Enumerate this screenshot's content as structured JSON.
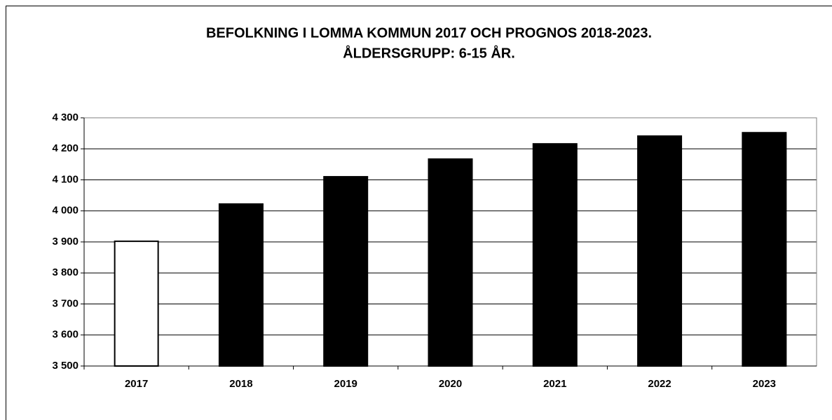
{
  "chart_data": {
    "type": "bar",
    "title": "BEFOLKNING I LOMMA KOMMUN 2017 OCH PROGNOS 2018-2023.",
    "subtitle": "ÅLDERSGRUPP: 6-15 ÅR.",
    "categories": [
      "2017",
      "2018",
      "2019",
      "2020",
      "2021",
      "2022",
      "2023"
    ],
    "values": [
      3902,
      4022,
      4110,
      4167,
      4216,
      4241,
      4252
    ],
    "colors": [
      "#ffffff",
      "#000000",
      "#000000",
      "#000000",
      "#000000",
      "#000000",
      "#000000"
    ],
    "ylim": [
      3500,
      4300
    ],
    "yticks": [
      {
        "value": 3500,
        "label": "3 500"
      },
      {
        "value": 3600,
        "label": "3 600"
      },
      {
        "value": 3700,
        "label": "3 700"
      },
      {
        "value": 3800,
        "label": "3 800"
      },
      {
        "value": 3900,
        "label": "3 900"
      },
      {
        "value": 4000,
        "label": "4 000"
      },
      {
        "value": 4100,
        "label": "4 100"
      },
      {
        "value": 4200,
        "label": "4 200"
      },
      {
        "value": 4300,
        "label": "4 300"
      }
    ],
    "grid": true
  }
}
